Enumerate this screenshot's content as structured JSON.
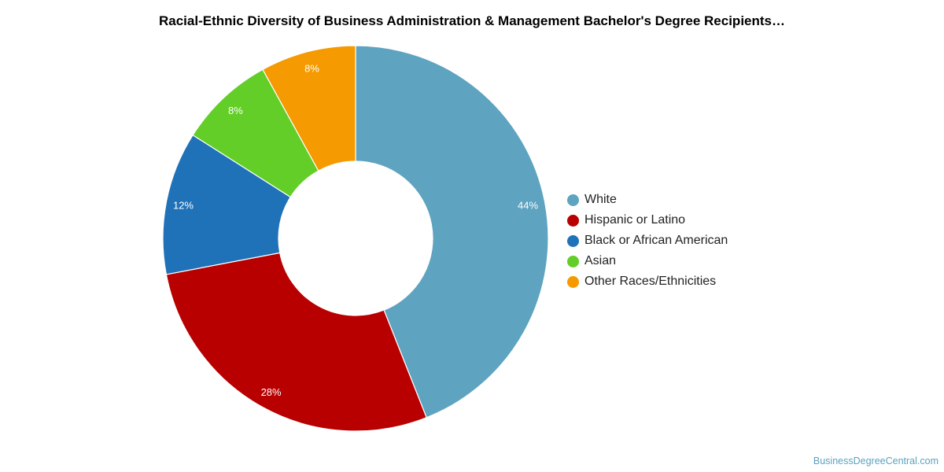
{
  "chart_data": {
    "type": "pie",
    "subtype": "donut",
    "title": "Racial-Ethnic Diversity of Business Administration & Management Bachelor's Degree Recipients…",
    "slices": [
      {
        "label": "White",
        "value": 44,
        "data_label": "44%",
        "color": "#5ea3bf"
      },
      {
        "label": "Hispanic or Latino",
        "value": 28,
        "data_label": "28%",
        "color": "#b80000"
      },
      {
        "label": "Black or African American",
        "value": 12,
        "data_label": "12%",
        "color": "#1f72b8"
      },
      {
        "label": "Asian",
        "value": 8,
        "data_label": "8%",
        "color": "#62ce27"
      },
      {
        "label": "Other Races/Ethnicities",
        "value": 8,
        "data_label": "8%",
        "color": "#f59a00"
      }
    ],
    "legend_position": "right"
  },
  "source": "BusinessDegreeCentral.com"
}
